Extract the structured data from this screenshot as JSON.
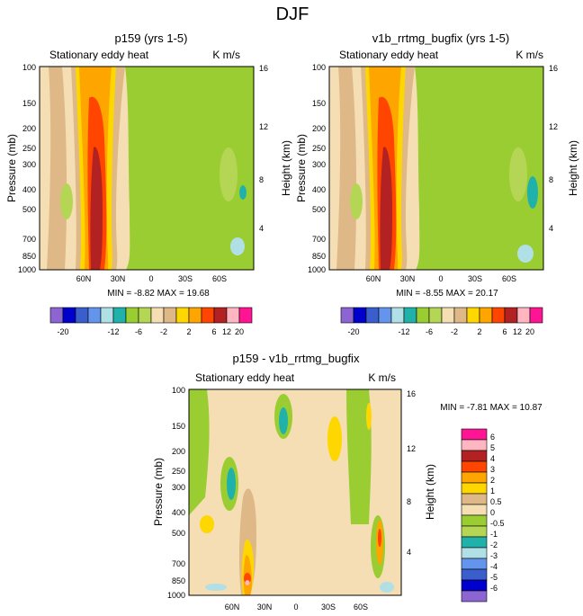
{
  "figure": {
    "title": "DJF"
  },
  "chart_data": [
    {
      "type": "heatmap",
      "title": "p159 (yrs 1-5)",
      "subtitle_left": "Stationary eddy heat",
      "subtitle_right": "K m/s",
      "ylabel": "Pressure (mb)",
      "ylabel_right": "Height (km)",
      "y_ticks": [
        "100",
        "150",
        "200",
        "250",
        "300",
        "400",
        "500",
        "700",
        "850",
        "1000"
      ],
      "y_ticks_right": [
        "16",
        "12",
        "8",
        "4"
      ],
      "x_ticks": [
        "60N",
        "30N",
        "0",
        "30S",
        "60S"
      ],
      "stats": "MIN = -8.82  MAX = 19.68",
      "colorbar_labels": [
        "-20",
        "-12",
        "-6",
        "-2",
        "2",
        "6",
        "12",
        "20"
      ]
    },
    {
      "type": "heatmap",
      "title": "v1b_rrtmg_bugfix (yrs 1-5)",
      "subtitle_left": "Stationary eddy heat",
      "subtitle_right": "K m/s",
      "ylabel": "Pressure (mb)",
      "ylabel_right": "Height (km)",
      "y_ticks": [
        "100",
        "150",
        "200",
        "250",
        "300",
        "400",
        "500",
        "700",
        "850",
        "1000"
      ],
      "y_ticks_right": [
        "16",
        "12",
        "8",
        "4"
      ],
      "x_ticks": [
        "60N",
        "30N",
        "0",
        "30S",
        "60S"
      ],
      "stats": "MIN = -8.55  MAX = 20.17",
      "colorbar_labels": [
        "-20",
        "-12",
        "-6",
        "-2",
        "2",
        "6",
        "12",
        "20"
      ]
    },
    {
      "type": "heatmap",
      "title": "p159 - v1b_rrtmg_bugfix",
      "subtitle_left": "Stationary eddy heat",
      "subtitle_right": "K m/s",
      "ylabel": "Pressure (mb)",
      "ylabel_right": "Height (km)",
      "y_ticks": [
        "100",
        "150",
        "200",
        "250",
        "300",
        "400",
        "500",
        "700",
        "850",
        "1000"
      ],
      "y_ticks_right": [
        "16",
        "12",
        "8",
        "4"
      ],
      "x_ticks": [
        "60N",
        "30N",
        "0",
        "30S",
        "60S"
      ],
      "stats": "MIN = -7.81  MAX = 10.87",
      "colorbar_labels": [
        "6",
        "5",
        "4",
        "3",
        "2",
        "1",
        "0.5",
        "0",
        "-0.5",
        "-1",
        "-2",
        "-3",
        "-4",
        "-5",
        "-6"
      ]
    }
  ],
  "colors": {
    "abs": [
      "#8c65d3",
      "#0000cd",
      "#3a5fcd",
      "#6495ed",
      "#b0e0e6",
      "#20b2aa",
      "#9acd32",
      "#b5d654",
      "#f5deb3",
      "#deb887",
      "#ffd700",
      "#ffa500",
      "#ff4500",
      "#b22222",
      "#ffb6c1",
      "#ff1493"
    ],
    "diff": [
      "#ff1493",
      "#ffb6c1",
      "#b22222",
      "#ff4500",
      "#ffa500",
      "#ffd700",
      "#deb887",
      "#f5deb3",
      "#9acd32",
      "#b5d654",
      "#20b2aa",
      "#b0e0e6",
      "#6495ed",
      "#3a5fcd",
      "#0000cd",
      "#8c65d3"
    ]
  }
}
